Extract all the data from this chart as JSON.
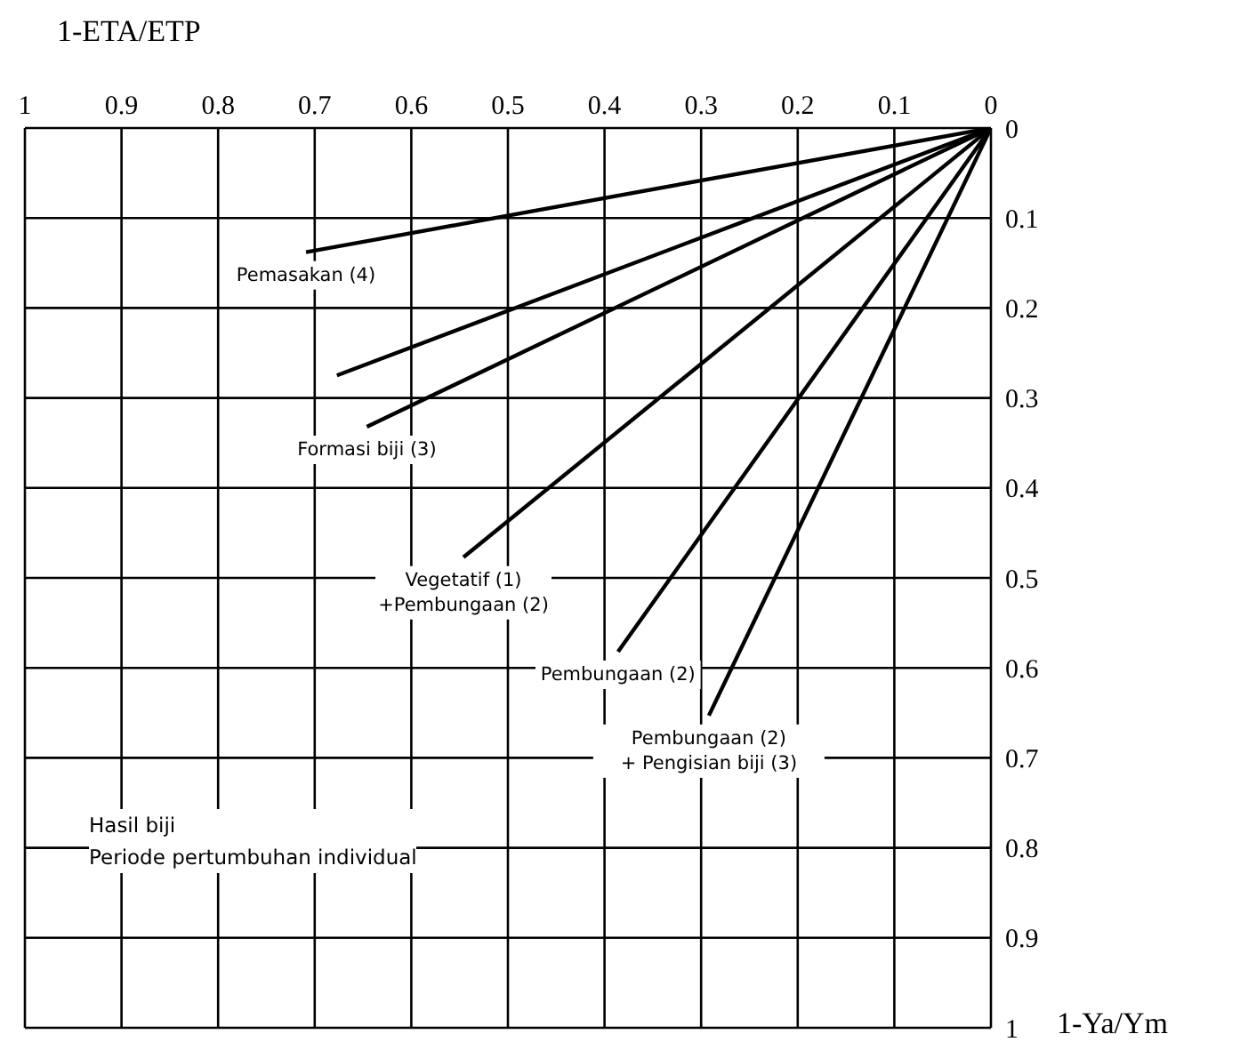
{
  "chart_data": {
    "type": "line",
    "xlabel": "1-ETA/ETP",
    "ylabel": "1-Ya/Ym",
    "xlim": [
      1,
      0
    ],
    "ylim": [
      1,
      0
    ],
    "xticks": [
      1,
      0.9,
      0.8,
      0.7,
      0.6,
      0.5,
      0.4,
      0.3,
      0.2,
      0.1,
      0
    ],
    "yticks": [
      0,
      0.1,
      0.2,
      0.3,
      0.4,
      0.5,
      0.6,
      0.7,
      0.8,
      0.9,
      1
    ],
    "grid": true,
    "legend": false,
    "marker": "none",
    "line_style": "solid",
    "series": [
      {
        "name": "Pemasakan (4)",
        "color": "#000000",
        "x": [
          0,
          0.709
        ],
        "values": [
          0,
          0.138
        ]
      },
      {
        "color": "#000000",
        "x": [
          0,
          0.677
        ],
        "values": [
          0,
          0.275
        ]
      },
      {
        "name": "Formasi biji (3)",
        "color": "#000000",
        "x": [
          0,
          0.646
        ],
        "values": [
          0,
          0.332
        ]
      },
      {
        "name": "Vegetatif (1)\n+Pembungaan (2)",
        "color": "#000000",
        "x": [
          0,
          0.546
        ],
        "values": [
          0,
          0.477
        ]
      },
      {
        "name": "Pembungaan (2)",
        "color": "#000000",
        "x": [
          0,
          0.386
        ],
        "values": [
          0,
          0.582
        ]
      },
      {
        "name": "Pembungaan (2)\n+ Pengisian biji (3)",
        "color": "#000000",
        "x": [
          0,
          0.292
        ],
        "values": [
          0,
          0.653
        ]
      }
    ],
    "annotations": [
      "Hasil biji\nPeriode pertumbuhan individual"
    ]
  }
}
